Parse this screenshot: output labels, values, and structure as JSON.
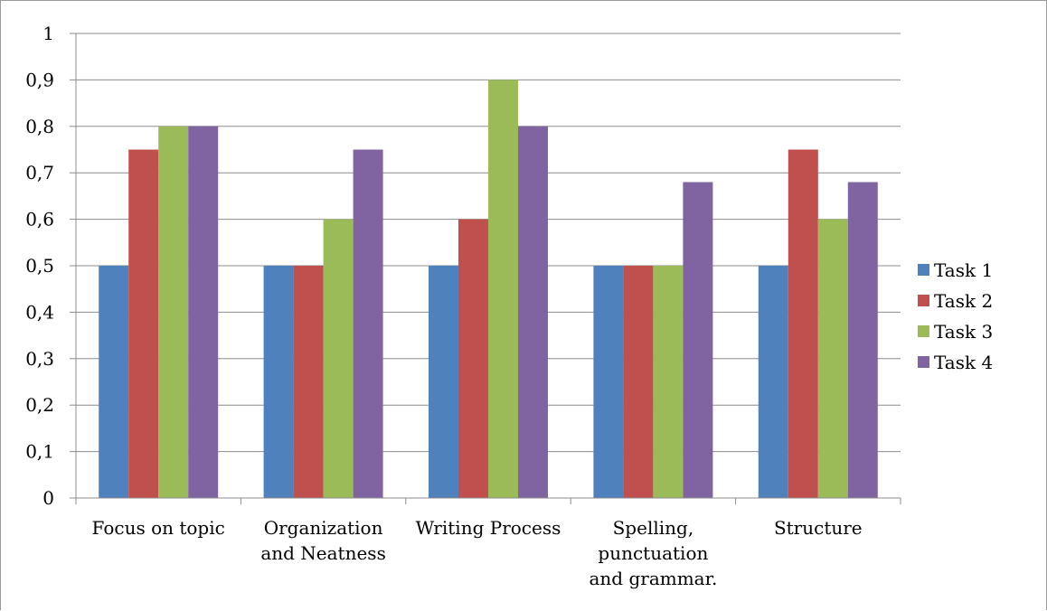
{
  "chart_data": {
    "type": "bar",
    "title": "",
    "xlabel": "",
    "ylabel": "",
    "ylim": [
      0,
      1
    ],
    "yticks": [
      "0",
      "0,1",
      "0,2",
      "0,3",
      "0,4",
      "0,5",
      "0,6",
      "0,7",
      "0,8",
      "0,9",
      "1"
    ],
    "grid": true,
    "legend_position": "right",
    "categories": [
      [
        "Focus on topic"
      ],
      [
        "Organization",
        "and Neatness"
      ],
      [
        "Writing Process"
      ],
      [
        "Spelling,",
        "punctuation",
        "and grammar."
      ],
      [
        "Structure"
      ]
    ],
    "series": [
      {
        "name": "Task 1",
        "color": "#4f81bd",
        "values": [
          0.5,
          0.5,
          0.5,
          0.5,
          0.5
        ]
      },
      {
        "name": "Task 2",
        "color": "#c0504d",
        "values": [
          0.75,
          0.5,
          0.6,
          0.5,
          0.75
        ]
      },
      {
        "name": "Task 3",
        "color": "#9bbb59",
        "values": [
          0.8,
          0.6,
          0.9,
          0.5,
          0.6
        ]
      },
      {
        "name": "Task 4",
        "color": "#8064a2",
        "values": [
          0.8,
          0.75,
          0.8,
          0.68,
          0.68
        ]
      }
    ]
  }
}
